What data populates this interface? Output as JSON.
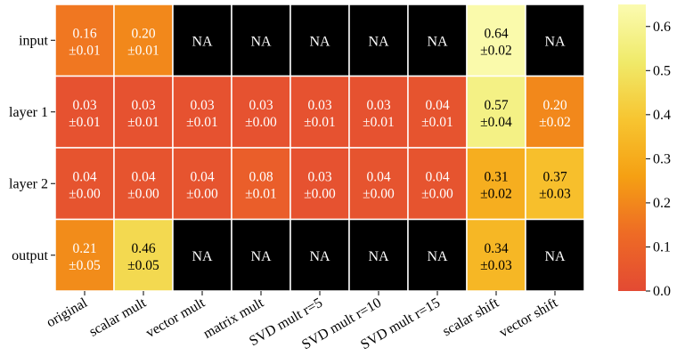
{
  "chart_data": {
    "type": "heatmap",
    "rows": [
      "input",
      "layer 1",
      "layer 2",
      "output"
    ],
    "columns": [
      "original",
      "scalar mult",
      "vector mult",
      "matrix mult",
      "SVD mult r=5",
      "SVD mult r=10",
      "SVD mult r=15",
      "scalar shift",
      "vector shift"
    ],
    "cells": [
      [
        {
          "mean": "0.16",
          "std": "±0.01",
          "value": 0.16
        },
        {
          "mean": "0.20",
          "std": "±0.01",
          "value": 0.2
        },
        {
          "na": true
        },
        {
          "na": true
        },
        {
          "na": true
        },
        {
          "na": true
        },
        {
          "na": true
        },
        {
          "mean": "0.64",
          "std": "±0.02",
          "value": 0.64
        },
        {
          "na": true
        }
      ],
      [
        {
          "mean": "0.03",
          "std": "±0.01",
          "value": 0.03
        },
        {
          "mean": "0.03",
          "std": "±0.01",
          "value": 0.03
        },
        {
          "mean": "0.03",
          "std": "±0.01",
          "value": 0.03
        },
        {
          "mean": "0.03",
          "std": "±0.00",
          "value": 0.03
        },
        {
          "mean": "0.03",
          "std": "±0.01",
          "value": 0.03
        },
        {
          "mean": "0.03",
          "std": "±0.01",
          "value": 0.03
        },
        {
          "mean": "0.04",
          "std": "±0.01",
          "value": 0.04
        },
        {
          "mean": "0.57",
          "std": "±0.04",
          "value": 0.57
        },
        {
          "mean": "0.20",
          "std": "±0.02",
          "value": 0.2
        }
      ],
      [
        {
          "mean": "0.04",
          "std": "±0.00",
          "value": 0.04
        },
        {
          "mean": "0.04",
          "std": "±0.00",
          "value": 0.04
        },
        {
          "mean": "0.04",
          "std": "±0.00",
          "value": 0.04
        },
        {
          "mean": "0.08",
          "std": "±0.01",
          "value": 0.08
        },
        {
          "mean": "0.03",
          "std": "±0.00",
          "value": 0.03
        },
        {
          "mean": "0.04",
          "std": "±0.00",
          "value": 0.04
        },
        {
          "mean": "0.04",
          "std": "±0.00",
          "value": 0.04
        },
        {
          "mean": "0.31",
          "std": "±0.02",
          "value": 0.31
        },
        {
          "mean": "0.37",
          "std": "±0.03",
          "value": 0.37
        }
      ],
      [
        {
          "mean": "0.21",
          "std": "±0.05",
          "value": 0.21
        },
        {
          "mean": "0.46",
          "std": "±0.05",
          "value": 0.46
        },
        {
          "na": true
        },
        {
          "na": true
        },
        {
          "na": true
        },
        {
          "na": true
        },
        {
          "na": true
        },
        {
          "mean": "0.34",
          "std": "±0.03",
          "value": 0.34
        },
        {
          "na": true
        }
      ]
    ],
    "na_label": "NA",
    "colorbar": {
      "min": 0.0,
      "max": 0.65,
      "ticks": [
        "0.0",
        "0.1",
        "0.2",
        "0.3",
        "0.4",
        "0.5",
        "0.6"
      ],
      "colormap": "YlOrRd_r-like"
    },
    "colors": {
      "na": "#000000",
      "grid": "#ffffff",
      "stops": [
        "#e34a33",
        "#ee6b25",
        "#f5a013",
        "#f7c531",
        "#f0ea6a",
        "#fbfbb0"
      ]
    }
  }
}
